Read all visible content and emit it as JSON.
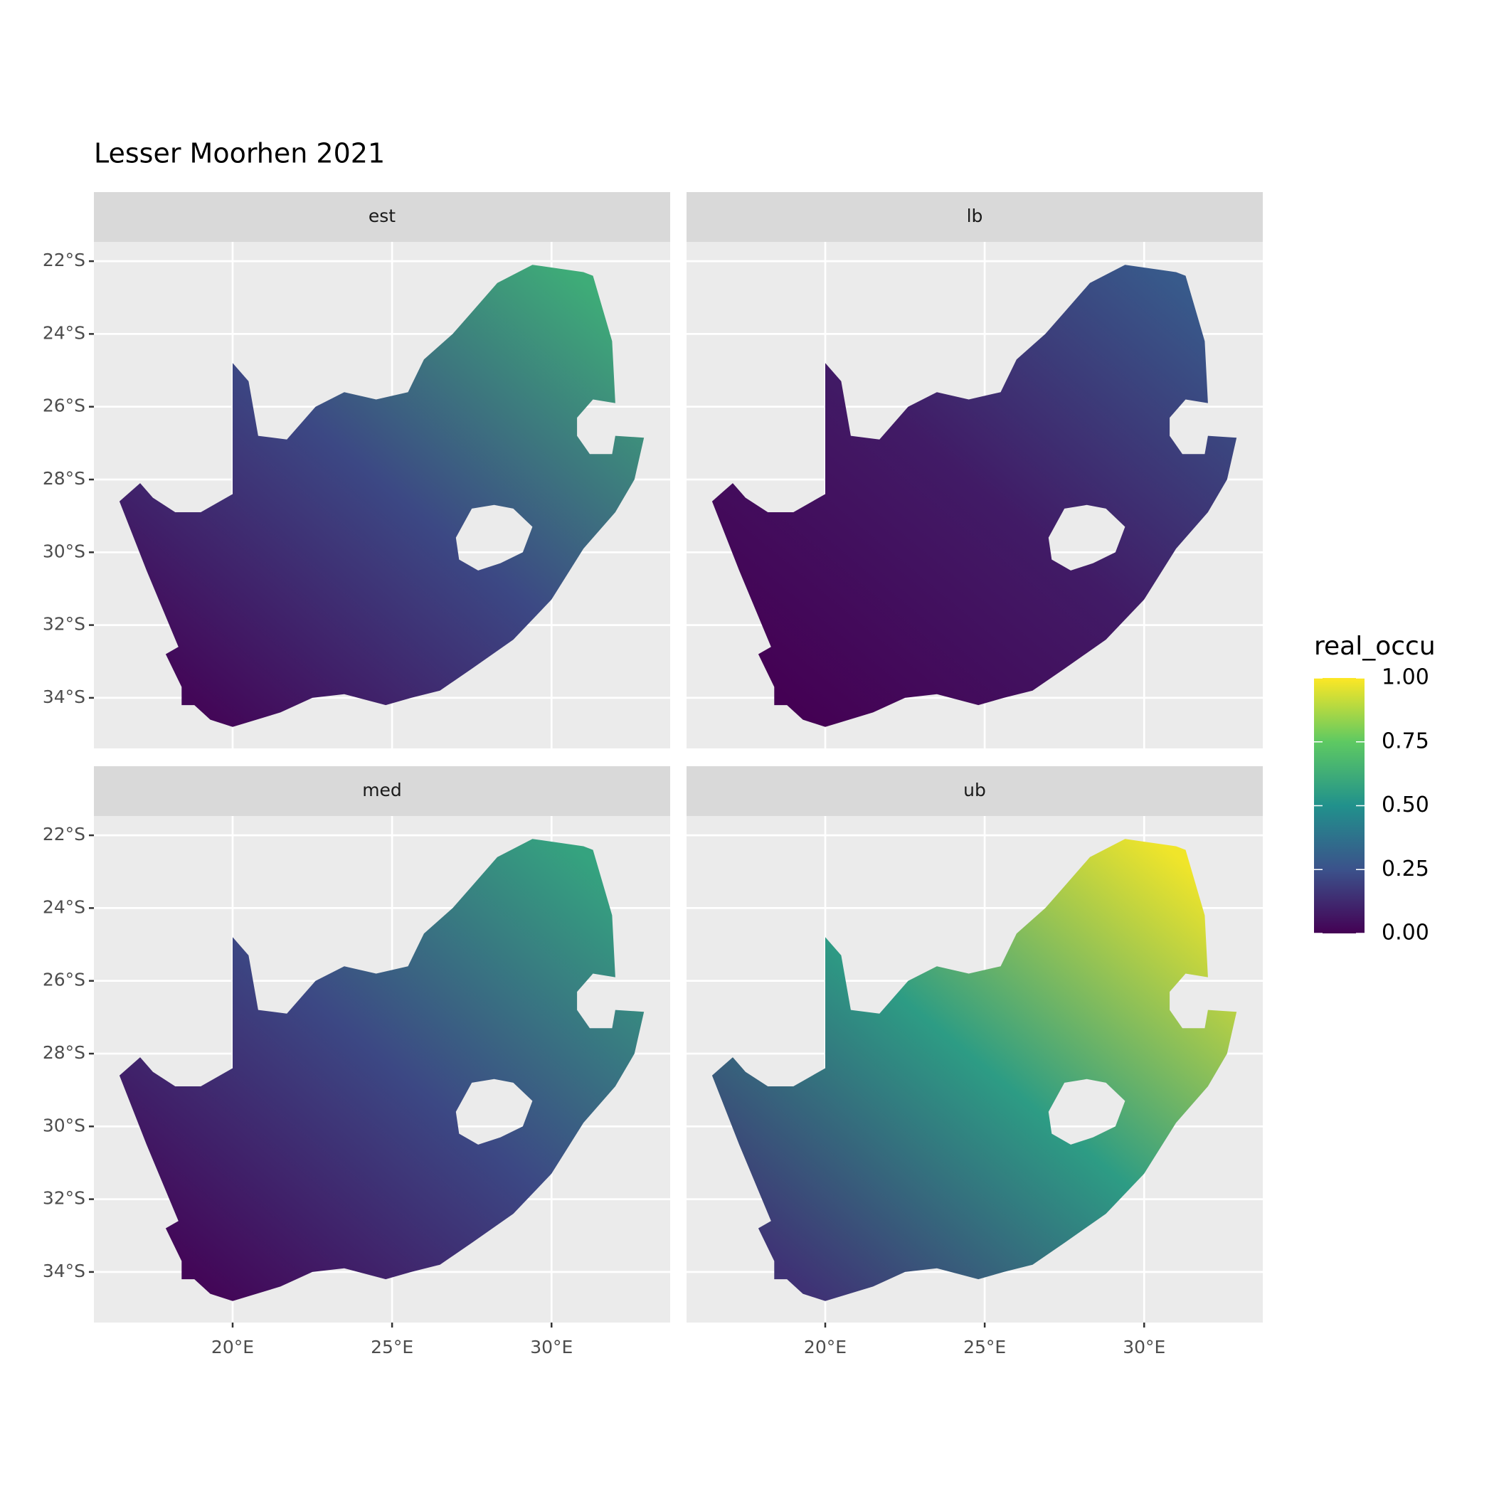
{
  "chart_data": {
    "type": "map",
    "title": "Lesser Moorhen 2021",
    "facets": [
      "est",
      "lb",
      "med",
      "ub"
    ],
    "xlim": [
      15.65,
      33.72
    ],
    "ylim": [
      -35.39,
      -21.47
    ],
    "xticks": [
      {
        "value": 20,
        "label": "20°E"
      },
      {
        "value": 25,
        "label": "25°E"
      },
      {
        "value": 30,
        "label": "30°E"
      }
    ],
    "yticks": [
      {
        "value": -22,
        "label": "22°S"
      },
      {
        "value": -24,
        "label": "24°S"
      },
      {
        "value": -26,
        "label": "26°S"
      },
      {
        "value": -28,
        "label": "28°S"
      },
      {
        "value": -30,
        "label": "30°S"
      },
      {
        "value": -32,
        "label": "32°S"
      },
      {
        "value": -34,
        "label": "34°S"
      }
    ],
    "grid": true,
    "legend": {
      "title": "real_occu",
      "lim": [
        0,
        1
      ],
      "ticks": [
        {
          "value": 0,
          "label": "0.00"
        },
        {
          "value": 0.25,
          "label": "0.25"
        },
        {
          "value": 0.5,
          "label": "0.50"
        },
        {
          "value": 0.75,
          "label": "0.75"
        },
        {
          "value": 1,
          "label": "1.00"
        }
      ],
      "colors": [
        "#440154",
        "#3b528b",
        "#21918c",
        "#5ec962",
        "#fde725"
      ]
    }
  }
}
